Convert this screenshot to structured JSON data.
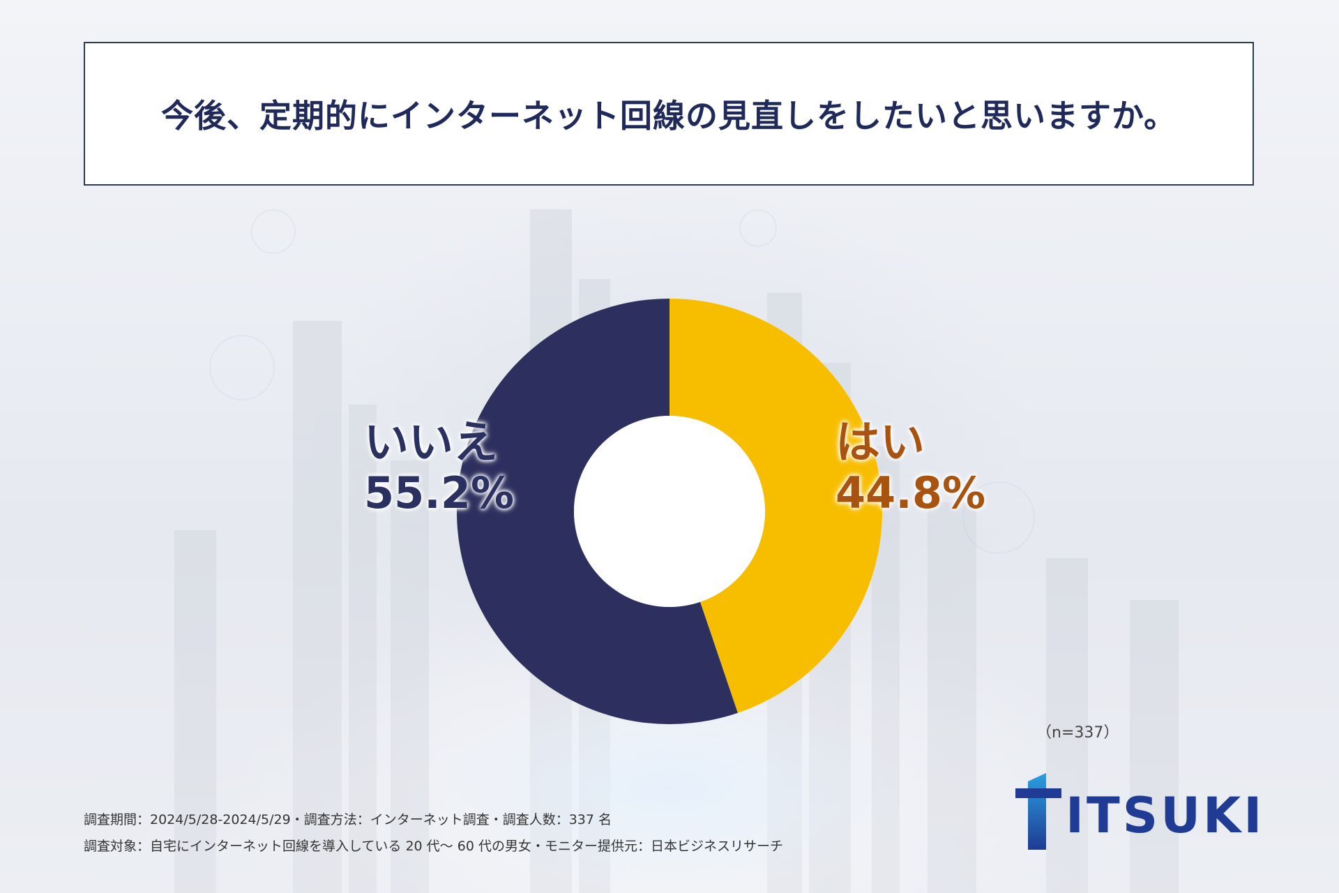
{
  "title": "今後、定期的にインターネット回線の見直しをしたいと思いますか。",
  "chart_data": {
    "type": "pie",
    "title": "今後、定期的にインターネット回線の見直しをしたいと思いますか。",
    "slices": [
      {
        "label": "はい",
        "value": 44.8,
        "display": "44.8%",
        "color": "#f7be00"
      },
      {
        "label": "いいえ",
        "value": 55.2,
        "display": "55.2%",
        "color": "#2d2f5e"
      }
    ],
    "donut": true,
    "start": "top",
    "direction": "clockwise"
  },
  "sample_size": "（n=337）",
  "footnotes": {
    "line1": "調査期間：2024/5/28-2024/5/29・調査方法：インターネット調査・調査人数：337 名",
    "line2": "調査対象：自宅にインターネット回線を導入している 20 代～ 60 代の男女・モニター提供元：日本ビジネスリサーチ"
  },
  "logo": {
    "text": "ITSUKI",
    "color": "#1f3b93"
  }
}
